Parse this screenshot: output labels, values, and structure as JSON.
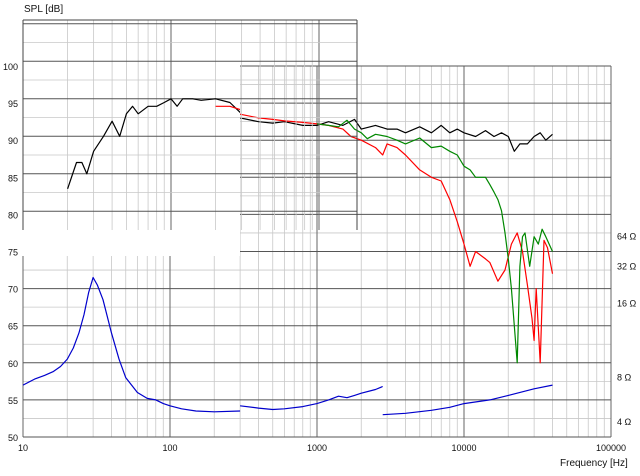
{
  "chart_data": {
    "type": "line",
    "title": "",
    "ylabel": "SPL [dB]",
    "xlabel": "Frequency [Hz]",
    "x_scale": "log",
    "xlim": [
      10,
      100000
    ],
    "ylim": [
      50,
      100
    ],
    "y_ticks": [
      "100",
      "95",
      "90",
      "85",
      "80",
      "75",
      "70",
      "65",
      "60",
      "55",
      "50"
    ],
    "x_ticks": [
      "10",
      "100",
      "1000",
      "10000",
      "100000"
    ],
    "right_ticks": [
      {
        "label": "64 Ω",
        "y": 77
      },
      {
        "label": "32 Ω",
        "y": 73
      },
      {
        "label": "16 Ω",
        "y": 68
      },
      {
        "label": "8 Ω",
        "y": 58
      },
      {
        "label": "4 Ω",
        "y": 52
      }
    ],
    "grid": true,
    "series": [
      {
        "color": "#000000",
        "points": [
          [
            20,
            83
          ],
          [
            23,
            86.5
          ],
          [
            25,
            86.5
          ],
          [
            27,
            85
          ],
          [
            30,
            88
          ],
          [
            35,
            90
          ],
          [
            40,
            92
          ],
          [
            45,
            90
          ],
          [
            50,
            93
          ],
          [
            55,
            94
          ],
          [
            60,
            93
          ],
          [
            70,
            94
          ],
          [
            80,
            94
          ],
          [
            90,
            94.5
          ],
          [
            100,
            95
          ],
          [
            110,
            94
          ],
          [
            120,
            95
          ],
          [
            140,
            95
          ],
          [
            160,
            94.8
          ],
          [
            200,
            95
          ],
          [
            250,
            94.5
          ],
          [
            300,
            93
          ],
          [
            400,
            92.5
          ],
          [
            500,
            92.3
          ],
          [
            600,
            92.5
          ],
          [
            800,
            92
          ],
          [
            1000,
            92
          ],
          [
            1200,
            92.5
          ],
          [
            1500,
            92
          ],
          [
            1800,
            92.8
          ],
          [
            2000,
            91.5
          ],
          [
            2500,
            92
          ],
          [
            3000,
            91.5
          ],
          [
            3500,
            91.5
          ],
          [
            4000,
            91
          ],
          [
            5000,
            91.8
          ],
          [
            6000,
            91
          ],
          [
            7000,
            92
          ],
          [
            8000,
            91
          ],
          [
            9000,
            91.5
          ],
          [
            10000,
            91
          ],
          [
            12000,
            90.5
          ],
          [
            14000,
            91.3
          ],
          [
            16000,
            90.5
          ],
          [
            18000,
            91
          ],
          [
            20000,
            90.5
          ],
          [
            22000,
            88.5
          ],
          [
            24000,
            89.5
          ],
          [
            27000,
            89.5
          ],
          [
            30000,
            90.5
          ],
          [
            33000,
            91
          ],
          [
            36000,
            90
          ],
          [
            40000,
            90.8
          ]
        ]
      },
      {
        "color": "#ff0000",
        "points": [
          [
            200,
            94
          ],
          [
            250,
            94
          ],
          [
            300,
            93.5
          ],
          [
            400,
            93
          ],
          [
            500,
            92.8
          ],
          [
            600,
            92.6
          ],
          [
            800,
            92.4
          ],
          [
            1000,
            92.2
          ],
          [
            1200,
            92
          ],
          [
            1500,
            91.5
          ],
          [
            1700,
            90.5
          ],
          [
            2000,
            90
          ],
          [
            2500,
            89
          ],
          [
            2800,
            88
          ],
          [
            3000,
            89.5
          ],
          [
            3500,
            89
          ],
          [
            4000,
            88
          ],
          [
            5000,
            86
          ],
          [
            6000,
            85
          ],
          [
            7000,
            84.5
          ],
          [
            8000,
            82
          ],
          [
            9000,
            79
          ],
          [
            10000,
            76
          ],
          [
            11000,
            73
          ],
          [
            12000,
            75
          ],
          [
            14000,
            74
          ],
          [
            15000,
            73.5
          ],
          [
            17000,
            71
          ],
          [
            19000,
            72.5
          ],
          [
            21000,
            76
          ],
          [
            23000,
            77.5
          ],
          [
            25000,
            75
          ],
          [
            27000,
            70.5
          ],
          [
            29000,
            66
          ],
          [
            30000,
            63
          ],
          [
            31000,
            70
          ],
          [
            33000,
            60
          ],
          [
            35000,
            76.5
          ],
          [
            37000,
            75.5
          ],
          [
            40000,
            72
          ]
        ]
      },
      {
        "color": "#008800",
        "points": [
          [
            1000,
            92.2
          ],
          [
            1200,
            92
          ],
          [
            1400,
            91.8
          ],
          [
            1600,
            92.7
          ],
          [
            1800,
            91.5
          ],
          [
            2000,
            91
          ],
          [
            2200,
            90.2
          ],
          [
            2500,
            90.8
          ],
          [
            3000,
            90.5
          ],
          [
            3500,
            90
          ],
          [
            4000,
            89.5
          ],
          [
            5000,
            90.3
          ],
          [
            6000,
            89
          ],
          [
            7000,
            89.2
          ],
          [
            8000,
            88.5
          ],
          [
            9000,
            88
          ],
          [
            10000,
            86.5
          ],
          [
            11000,
            86
          ],
          [
            12000,
            85
          ],
          [
            14000,
            85
          ],
          [
            15000,
            84
          ],
          [
            16000,
            83
          ],
          [
            17000,
            82
          ],
          [
            18000,
            80.5
          ],
          [
            19000,
            77.5
          ],
          [
            20000,
            74
          ],
          [
            21000,
            70
          ],
          [
            22000,
            65
          ],
          [
            23000,
            60
          ],
          [
            24000,
            73
          ],
          [
            25000,
            77
          ],
          [
            26000,
            77.5
          ],
          [
            28000,
            73
          ],
          [
            30000,
            77
          ],
          [
            32000,
            76
          ],
          [
            34000,
            78
          ],
          [
            36000,
            77
          ],
          [
            40000,
            75
          ]
        ]
      },
      {
        "color": "#0000cc",
        "segments": [
          [
            [
              10,
              57
            ],
            [
              12,
              57.8
            ],
            [
              14,
              58.3
            ],
            [
              16,
              58.8
            ],
            [
              18,
              59.5
            ],
            [
              20,
              60.5
            ],
            [
              22,
              62
            ],
            [
              24,
              64
            ],
            [
              26,
              66.5
            ],
            [
              28,
              69.5
            ],
            [
              30,
              71.5
            ],
            [
              32,
              70.5
            ],
            [
              35,
              68.5
            ],
            [
              40,
              64
            ],
            [
              45,
              60.5
            ],
            [
              50,
              58
            ],
            [
              60,
              56
            ],
            [
              70,
              55.2
            ],
            [
              80,
              55
            ],
            [
              90,
              54.5
            ],
            [
              100,
              54.2
            ],
            [
              120,
              53.8
            ],
            [
              150,
              53.5
            ],
            [
              200,
              53.4
            ],
            [
              300,
              53.5
            ]
          ],
          [
            [
              300,
              54.2
            ],
            [
              400,
              53.9
            ],
            [
              500,
              53.7
            ],
            [
              600,
              53.8
            ],
            [
              800,
              54.1
            ],
            [
              1000,
              54.5
            ],
            [
              1200,
              55
            ],
            [
              1400,
              55.5
            ],
            [
              1600,
              55.3
            ],
            [
              1800,
              55.6
            ],
            [
              2000,
              55.9
            ],
            [
              2500,
              56.4
            ],
            [
              2800,
              56.8
            ]
          ],
          [
            [
              2800,
              53
            ],
            [
              4000,
              53.2
            ],
            [
              6000,
              53.6
            ],
            [
              8000,
              54
            ],
            [
              10000,
              54.5
            ],
            [
              15000,
              55
            ],
            [
              20000,
              55.6
            ],
            [
              30000,
              56.5
            ],
            [
              40000,
              57
            ]
          ]
        ]
      }
    ]
  }
}
